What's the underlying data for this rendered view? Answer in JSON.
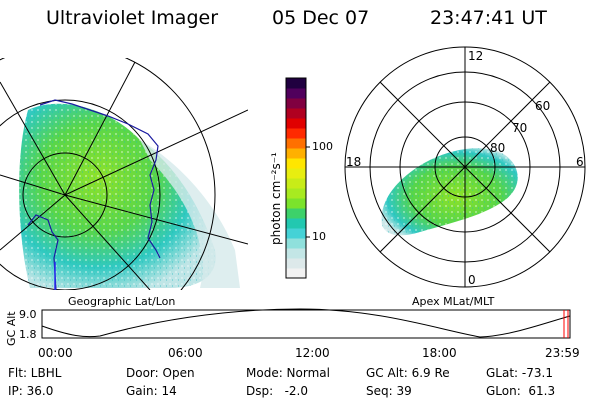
{
  "header": {
    "instrument": "Ultraviolet Imager",
    "date": "05 Dec 07",
    "time": "23:47:41 UT"
  },
  "panels": {
    "left_label": "Geographic Lat/Lon",
    "right_label": "Apex MLat/MLT"
  },
  "colorbar": {
    "label": "photon cm⁻²s⁻¹",
    "ticks": [
      {
        "label": "100",
        "value": 100
      },
      {
        "label": "10",
        "value": 10
      }
    ],
    "colors": [
      "#f2f2f2",
      "#dde9ea",
      "#c3e6e6",
      "#8fe0dc",
      "#45d2d6",
      "#22c8b0",
      "#3dd16a",
      "#7be32c",
      "#a8ea20",
      "#c8ec18",
      "#e8ee10",
      "#ffe600",
      "#ffb000",
      "#ff7000",
      "#ff2a00",
      "#e00000",
      "#b00020",
      "#800040",
      "#50005c",
      "#200040"
    ]
  },
  "mlt_labels": {
    "top": "12",
    "left": "18",
    "right": "6",
    "bottom": "0"
  },
  "mlat_labels": [
    "60",
    "70",
    "80"
  ],
  "alt_plot": {
    "ylabel": "GC Alt",
    "yticks": [
      "9.0",
      "1.8"
    ],
    "xticks": [
      "00:00",
      "06:00",
      "12:00",
      "18:00",
      "23:59"
    ]
  },
  "info": {
    "col1": [
      "Flt: LBHL",
      "IP: 36.0"
    ],
    "col2": [
      "Door: Open",
      "Gain: 14"
    ],
    "col3": [
      "Mode: Normal",
      "Dsp:   -2.0"
    ],
    "col4": [
      "GC Alt: 6.9 Re",
      "Seq: 39"
    ],
    "col5": [
      "GLat: -73.1",
      "GLon:  61.3"
    ]
  },
  "colors": {
    "aurora_green": "#5fd83a",
    "aurora_cyan": "#3fd0d0",
    "marker_red": "#ff0000"
  }
}
